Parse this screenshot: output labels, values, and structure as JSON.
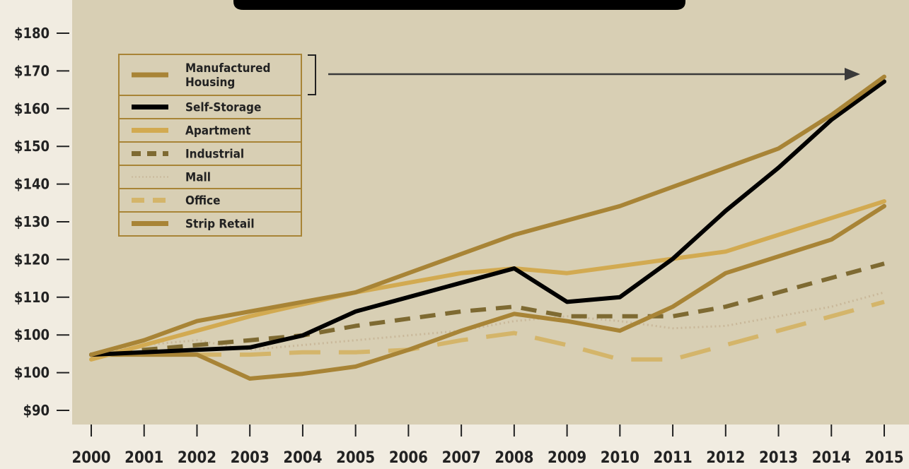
{
  "chart_data": {
    "type": "line",
    "categories": [
      "2000",
      "2001",
      "2002",
      "2003",
      "2004",
      "2005",
      "2006",
      "2007",
      "2008",
      "2009",
      "2010",
      "2011",
      "2012",
      "2013",
      "2014",
      "2015"
    ],
    "y_tick_labels": [
      "$180",
      "$170",
      "$160",
      "$150",
      "$140",
      "$130",
      "$120",
      "$110",
      "$100",
      "$100",
      "$90"
    ],
    "legend_position": "top-left",
    "grid": false,
    "series": [
      {
        "name": "Manufactured Housing",
        "color": "#a88436",
        "dash": "solid",
        "values": [
          100,
          103,
          107,
          109,
          111,
          113,
          117,
          121,
          125,
          128,
          131,
          135,
          139,
          143,
          150,
          158
        ]
      },
      {
        "name": "Self-Storage",
        "color": "#000000",
        "dash": "solid",
        "values": [
          100,
          100.5,
          101,
          101.5,
          104,
          109,
          112,
          115,
          118,
          111,
          112,
          120,
          130,
          139,
          149,
          157
        ]
      },
      {
        "name": "Apartment",
        "color": "#d2aa51",
        "dash": "solid",
        "values": [
          99,
          102,
          105,
          108,
          110.5,
          113,
          115,
          117,
          118,
          117,
          118.5,
          120,
          121.5,
          125,
          128.5,
          132
        ]
      },
      {
        "name": "Industrial",
        "color": "#7e6a32",
        "dash": "dash",
        "values": [
          100,
          101,
          102,
          103,
          104,
          106,
          107.5,
          109,
          110,
          108,
          108,
          108,
          110,
          113,
          116,
          119
        ]
      },
      {
        "name": "Mall",
        "color": "#c9b89a",
        "dash": "dot",
        "values": [
          100,
          102,
          103,
          101,
          102,
          103,
          104,
          105,
          107,
          108,
          107,
          105.5,
          106,
          108,
          110,
          113
        ]
      },
      {
        "name": "Office",
        "color": "#d4b56a",
        "dash": "longdash",
        "values": [
          100,
          100,
          100,
          100,
          100.5,
          100.5,
          101,
          103,
          104.5,
          102,
          99,
          99,
          102,
          105,
          108,
          111
        ]
      },
      {
        "name": "Strip Retail",
        "color": "#a88436",
        "dash": "solid",
        "values": [
          100,
          100,
          100,
          95,
          96,
          97.5,
          101,
          105,
          108.5,
          107,
          105,
          110,
          117,
          120.5,
          124,
          131
        ]
      }
    ]
  }
}
